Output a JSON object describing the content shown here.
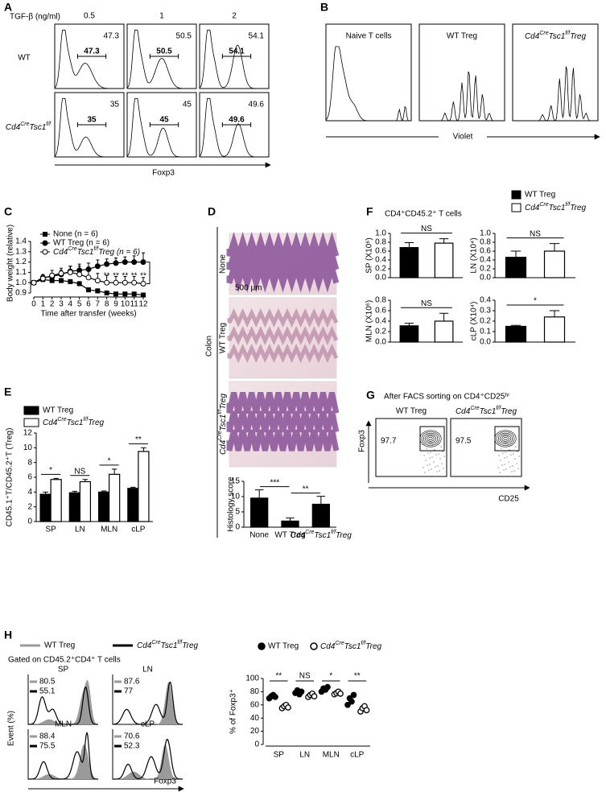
{
  "panels": {
    "A": {
      "label": "A",
      "title": "TGF-β (ng/ml)",
      "columns": [
        "0.5",
        "1",
        "2"
      ],
      "rows": [
        {
          "label": "WT",
          "values": [
            47.3,
            50.5,
            54.1
          ]
        },
        {
          "label": [
            "Cd4",
            "Cre",
            "Tsc1",
            "f/f"
          ],
          "values": [
            35,
            45,
            49.6
          ]
        }
      ],
      "x_label": "Foxp3"
    },
    "B": {
      "label": "B",
      "titles": [
        "Naive T cells",
        "WT Treg",
        [
          "Cd4",
          "Cre",
          "Tsc1",
          "f/f",
          "Treg"
        ]
      ],
      "x_label": "Violet"
    },
    "C": {
      "label": "C",
      "chart": {
        "type": "line",
        "x": [
          0,
          1,
          2,
          3,
          4,
          5,
          6,
          7,
          8,
          9,
          10,
          11,
          12
        ],
        "xlim": [
          0,
          12
        ],
        "xticks": [
          0,
          1,
          2,
          3,
          4,
          5,
          6,
          7,
          8,
          9,
          10,
          11,
          12
        ],
        "ylim": [
          0.9,
          1.4
        ],
        "yticks": [
          {
            "value": 0.9,
            "label": "0.9"
          },
          {
            "value": 1.0,
            "label": "1.0"
          },
          {
            "value": 1.1,
            "label": "1.1"
          },
          {
            "value": 1.2,
            "label": "1.2"
          },
          {
            "value": 1.3,
            "label": "1.3"
          },
          {
            "value": 1.4,
            "label": "1.4"
          }
        ],
        "x_label": "Time after transfer (weeks)",
        "y_label": "Body weight (relative)",
        "series": [
          {
            "name": "None (n = 6)",
            "marker": "square",
            "color": "#000000",
            "values": [
              1.0,
              1.03,
              1.02,
              1.02,
              1.01,
              0.99,
              0.93,
              0.92,
              0.9,
              0.89,
              0.89,
              0.89,
              0.88
            ],
            "errors": [
              0,
              0.02,
              0.02,
              0.02,
              0.02,
              0.02,
              0.02,
              0.02,
              0.01,
              0.01,
              0.01,
              0.01,
              0.01
            ]
          },
          {
            "name": "WT Treg (n = 6)",
            "marker": "circle",
            "color": "#000000",
            "values": [
              1.0,
              1.05,
              1.06,
              1.08,
              1.11,
              1.12,
              1.13,
              1.16,
              1.18,
              1.19,
              1.2,
              1.2,
              1.2
            ],
            "errors": [
              0,
              0.03,
              0.03,
              0.04,
              0.05,
              0.06,
              0.06,
              0.06,
              0.05,
              0.05,
              0.05,
              0.06,
              0.09
            ]
          },
          {
            "name": [
              "Cd4",
              "Cre",
              "Tsc1",
              "f/f",
              "Treg (n = 6)"
            ],
            "marker": "open-circle",
            "color": "#000000",
            "values": [
              1.0,
              1.04,
              1.07,
              1.09,
              1.1,
              1.08,
              1.05,
              1.02,
              1.0,
              1.0,
              1.0,
              1.0,
              0.99
            ],
            "errors": [
              0,
              0.03,
              0.05,
              0.05,
              0.06,
              0.08,
              0.08,
              0.07,
              0.07,
              0.06,
              0.06,
              0.06,
              0.06
            ]
          }
        ],
        "significance": [
          {
            "x": 8,
            "label": "**"
          },
          {
            "x": 9,
            "label": "**"
          },
          {
            "x": 10,
            "label": "**"
          },
          {
            "x": 11,
            "label": "**"
          },
          {
            "x": 12,
            "label": "**"
          }
        ]
      }
    },
    "D": {
      "label": "D",
      "organ": "Colon",
      "rows": [
        "None",
        "WT Treg",
        [
          "Cd4",
          "Cre",
          "Tsc1",
          "f/f",
          "Treg"
        ]
      ],
      "scale_bar": "500 μm",
      "chart": {
        "type": "bar",
        "categories": [
          "None",
          "WT Treg",
          [
            "Cd4",
            "Cre",
            "Tsc1",
            "f/f",
            "Treg"
          ]
        ],
        "series": [
          {
            "color": "#000000",
            "values": [
              9.5,
              2,
              7.5
            ],
            "errors": [
              2.7,
              1,
              2.6
            ]
          }
        ],
        "ylim": [
          0,
          15
        ],
        "yticks": [
          0,
          5,
          10,
          15
        ],
        "y_label": "Histology score",
        "significance": [
          {
            "from": 0,
            "to": 1,
            "label": "***"
          },
          {
            "from": 1,
            "to": 2,
            "label": "**"
          }
        ]
      }
    },
    "E": {
      "label": "E",
      "chart": {
        "type": "bar",
        "categories": [
          "SP",
          "LN",
          "MLN",
          "cLP"
        ],
        "series": [
          {
            "name": "WT Treg",
            "color": "#000000",
            "values": [
              3.7,
              3.9,
              4.0,
              4.5
            ],
            "errors": [
              0.3,
              0.2,
              0.15,
              0.15
            ]
          },
          {
            "name": [
              "Cd4",
              "Cre",
              "Tsc1",
              "f/f",
              "Treg"
            ],
            "color": "#ffffff",
            "values": [
              5.7,
              5.4,
              6.4,
              9.5
            ],
            "errors": [
              0.15,
              0.3,
              0.7,
              0.5
            ]
          }
        ],
        "ylim": [
          0,
          12
        ],
        "yticks": [
          0,
          2,
          4,
          6,
          8,
          10,
          12
        ],
        "y_label": "CD45.1⁺T/CD45.2⁺T (Treg)",
        "significance": [
          {
            "from": 0,
            "to": 0,
            "label": "*"
          },
          {
            "from": 1,
            "to": 1,
            "label": "NS"
          },
          {
            "from": 2,
            "to": 2,
            "label": "*"
          },
          {
            "from": 3,
            "to": 3,
            "label": "**"
          }
        ]
      }
    },
    "F": {
      "label": "F",
      "title": "CD4⁺CD45.2⁺ T cells",
      "legend": [
        {
          "name": "WT Treg",
          "color": "#000000"
        },
        {
          "name": [
            "Cd4",
            "Cre",
            "Tsc1",
            "f/f",
            "Treg"
          ],
          "color": "#ffffff"
        }
      ],
      "charts": [
        {
          "type": "bar",
          "y_label": "SP (X10⁶)",
          "ylim": [
            0,
            1.0
          ],
          "yticks": [
            {
              "value": 0,
              "label": "0.0"
            },
            {
              "value": 0.2,
              "label": "0.2"
            },
            {
              "value": 0.4,
              "label": "0.4"
            },
            {
              "value": 0.6,
              "label": "0.6"
            },
            {
              "value": 0.8,
              "label": "0.8"
            },
            {
              "value": 1.0,
              "label": "1.0"
            }
          ],
          "series": [
            {
              "color": "#000000",
              "values": [
                0.68
              ],
              "errors": [
                0.11
              ]
            },
            {
              "color": "#ffffff",
              "values": [
                0.78
              ],
              "errors": [
                0.1
              ]
            }
          ],
          "significance": [
            {
              "from": 0,
              "to": 0,
              "label": "NS"
            }
          ]
        },
        {
          "type": "bar",
          "y_label": "LN (X10⁴)",
          "ylim": [
            0,
            1.0
          ],
          "yticks": [
            {
              "value": 0,
              "label": "0.0"
            },
            {
              "value": 0.2,
              "label": "0.2"
            },
            {
              "value": 0.4,
              "label": "0.4"
            },
            {
              "value": 0.6,
              "label": "0.6"
            },
            {
              "value": 0.8,
              "label": "0.8"
            },
            {
              "value": 1.0,
              "label": "1.0"
            }
          ],
          "series": [
            {
              "color": "#000000",
              "values": [
                0.46
              ],
              "errors": [
                0.14
              ]
            },
            {
              "color": "#ffffff",
              "values": [
                0.6
              ],
              "errors": [
                0.17
              ]
            }
          ],
          "significance": [
            {
              "from": 0,
              "to": 0,
              "label": "NS"
            }
          ]
        },
        {
          "type": "bar",
          "y_label": "MLN (X10⁶)",
          "ylim": [
            0,
            0.8
          ],
          "yticks": [
            {
              "value": 0,
              "label": "0.0"
            },
            {
              "value": 0.2,
              "label": "0.2"
            },
            {
              "value": 0.4,
              "label": "0.4"
            },
            {
              "value": 0.6,
              "label": "0.6"
            },
            {
              "value": 0.8,
              "label": "0.8"
            }
          ],
          "series": [
            {
              "color": "#000000",
              "values": [
                0.31
              ],
              "errors": [
                0.05
              ]
            },
            {
              "color": "#ffffff",
              "values": [
                0.4
              ],
              "errors": [
                0.15
              ]
            }
          ],
          "significance": [
            {
              "from": 0,
              "to": 0,
              "label": "NS"
            }
          ]
        },
        {
          "type": "bar",
          "y_label": "cLP (X10⁴)",
          "ylim": [
            0,
            0.4
          ],
          "yticks": [
            {
              "value": 0,
              "label": "0.0"
            },
            {
              "value": 0.1,
              "label": "0.1"
            },
            {
              "value": 0.2,
              "label": "0.2"
            },
            {
              "value": 0.3,
              "label": "0.3"
            },
            {
              "value": 0.4,
              "label": "0.4"
            }
          ],
          "series": [
            {
              "color": "#000000",
              "values": [
                0.15
              ],
              "errors": [
                0.01
              ]
            },
            {
              "color": "#ffffff",
              "values": [
                0.24
              ],
              "errors": [
                0.06
              ]
            }
          ],
          "significance": [
            {
              "from": 0,
              "to": 0,
              "label": "*"
            }
          ]
        }
      ]
    },
    "G": {
      "label": "G",
      "title": "After FACS sorting on CD4⁺CD25ʰⁱ",
      "plots": [
        {
          "title": "WT Treg",
          "value": 97.7
        },
        {
          "title": [
            "Cd4",
            "Cre",
            "Tsc1",
            "f/f",
            "Treg"
          ],
          "value": 97.5
        }
      ],
      "y_label": "Foxp3",
      "x_label": "CD25"
    },
    "H": {
      "label": "H",
      "legend": [
        {
          "name": "WT Treg",
          "color": "#999999"
        },
        {
          "name": [
            "Cd4",
            "Cre",
            "Tsc1",
            "f/f",
            "Treg"
          ],
          "color": "#000000"
        }
      ],
      "subtitle": "Gated on CD45.2⁺CD4⁺ T cells",
      "histograms": [
        {
          "title": "SP",
          "values": [
            80.5,
            55.1
          ]
        },
        {
          "title": "LN",
          "values": [
            87.6,
            77
          ]
        },
        {
          "title": "MLN",
          "values": [
            88.4,
            75.5
          ]
        },
        {
          "title": "cLP",
          "values": [
            70.6,
            52.3
          ]
        }
      ],
      "y_label": "Event (%)",
      "x_label": "Foxp3",
      "chart": {
        "type": "scatter",
        "categories": [
          "SP",
          "LN",
          "MLN",
          "cLP"
        ],
        "series": [
          {
            "name": "WT Treg",
            "marker": "filled-circle",
            "color": "#000000",
            "values": [
              [
                70,
                73,
                75,
                72
              ],
              [
                78,
                82,
                76,
                80
              ],
              [
                80,
                85,
                83,
                87
              ],
              [
                60,
                70,
                65,
                75
              ]
            ]
          },
          {
            "name": [
              "Cd4",
              "Cre",
              "Tsc1",
              "f/f",
              "Treg"
            ],
            "marker": "open-circle",
            "color": "#000000",
            "values": [
              [
                55,
                58,
                60,
                56
              ],
              [
                72,
                75,
                77,
                73
              ],
              [
                76,
                78,
                80,
                77
              ],
              [
                50,
                55,
                58,
                52
              ]
            ]
          }
        ],
        "ylim": [
          0,
          100
        ],
        "yticks": [
          0,
          20,
          40,
          60,
          80,
          100
        ],
        "y_label": "% of Foxp3⁺",
        "significance": [
          {
            "from": 0,
            "to": 0,
            "label": "**"
          },
          {
            "from": 1,
            "to": 1,
            "label": "NS"
          },
          {
            "from": 2,
            "to": 2,
            "label": "*"
          },
          {
            "from": 3,
            "to": 3,
            "label": "**"
          }
        ]
      }
    }
  }
}
